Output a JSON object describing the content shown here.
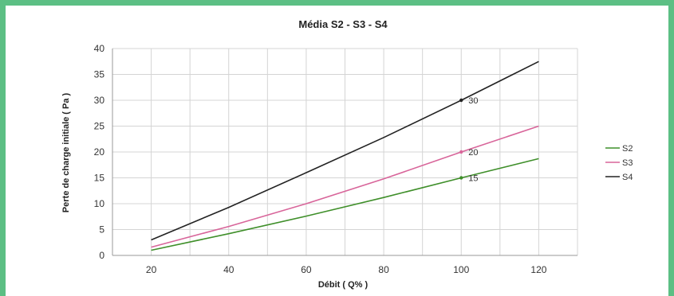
{
  "chart_data": {
    "type": "line",
    "title": "Média S2 - S3 - S4",
    "xlabel": "Débit  ( Q% )",
    "ylabel": "Perte de charge initiale  ( Pa )",
    "x_ticks": [
      20,
      40,
      60,
      80,
      100,
      120
    ],
    "y_ticks": [
      0,
      5,
      10,
      15,
      20,
      25,
      30,
      35,
      40
    ],
    "xlim": [
      10,
      130
    ],
    "ylim": [
      0,
      40
    ],
    "grid": true,
    "legend_position": "right",
    "series": [
      {
        "name": "S2",
        "color": "#3f8f2a",
        "x": [
          20,
          40,
          60,
          80,
          100,
          120
        ],
        "y": [
          1.0,
          4.2,
          7.6,
          11.2,
          15.0,
          18.7
        ],
        "labels": [
          {
            "x": 100,
            "y": 15,
            "text": "15"
          }
        ]
      },
      {
        "name": "S3",
        "color": "#d8659a",
        "x": [
          20,
          40,
          60,
          80,
          100,
          120
        ],
        "y": [
          1.6,
          5.6,
          10.0,
          14.8,
          20.0,
          25.0
        ],
        "labels": [
          {
            "x": 100,
            "y": 20,
            "text": "20"
          }
        ]
      },
      {
        "name": "S4",
        "color": "#222222",
        "x": [
          20,
          40,
          60,
          80,
          100,
          120
        ],
        "y": [
          3.0,
          9.3,
          16.0,
          22.8,
          30.0,
          37.5
        ],
        "labels": [
          {
            "x": 100,
            "y": 30,
            "text": "30"
          }
        ]
      }
    ]
  }
}
